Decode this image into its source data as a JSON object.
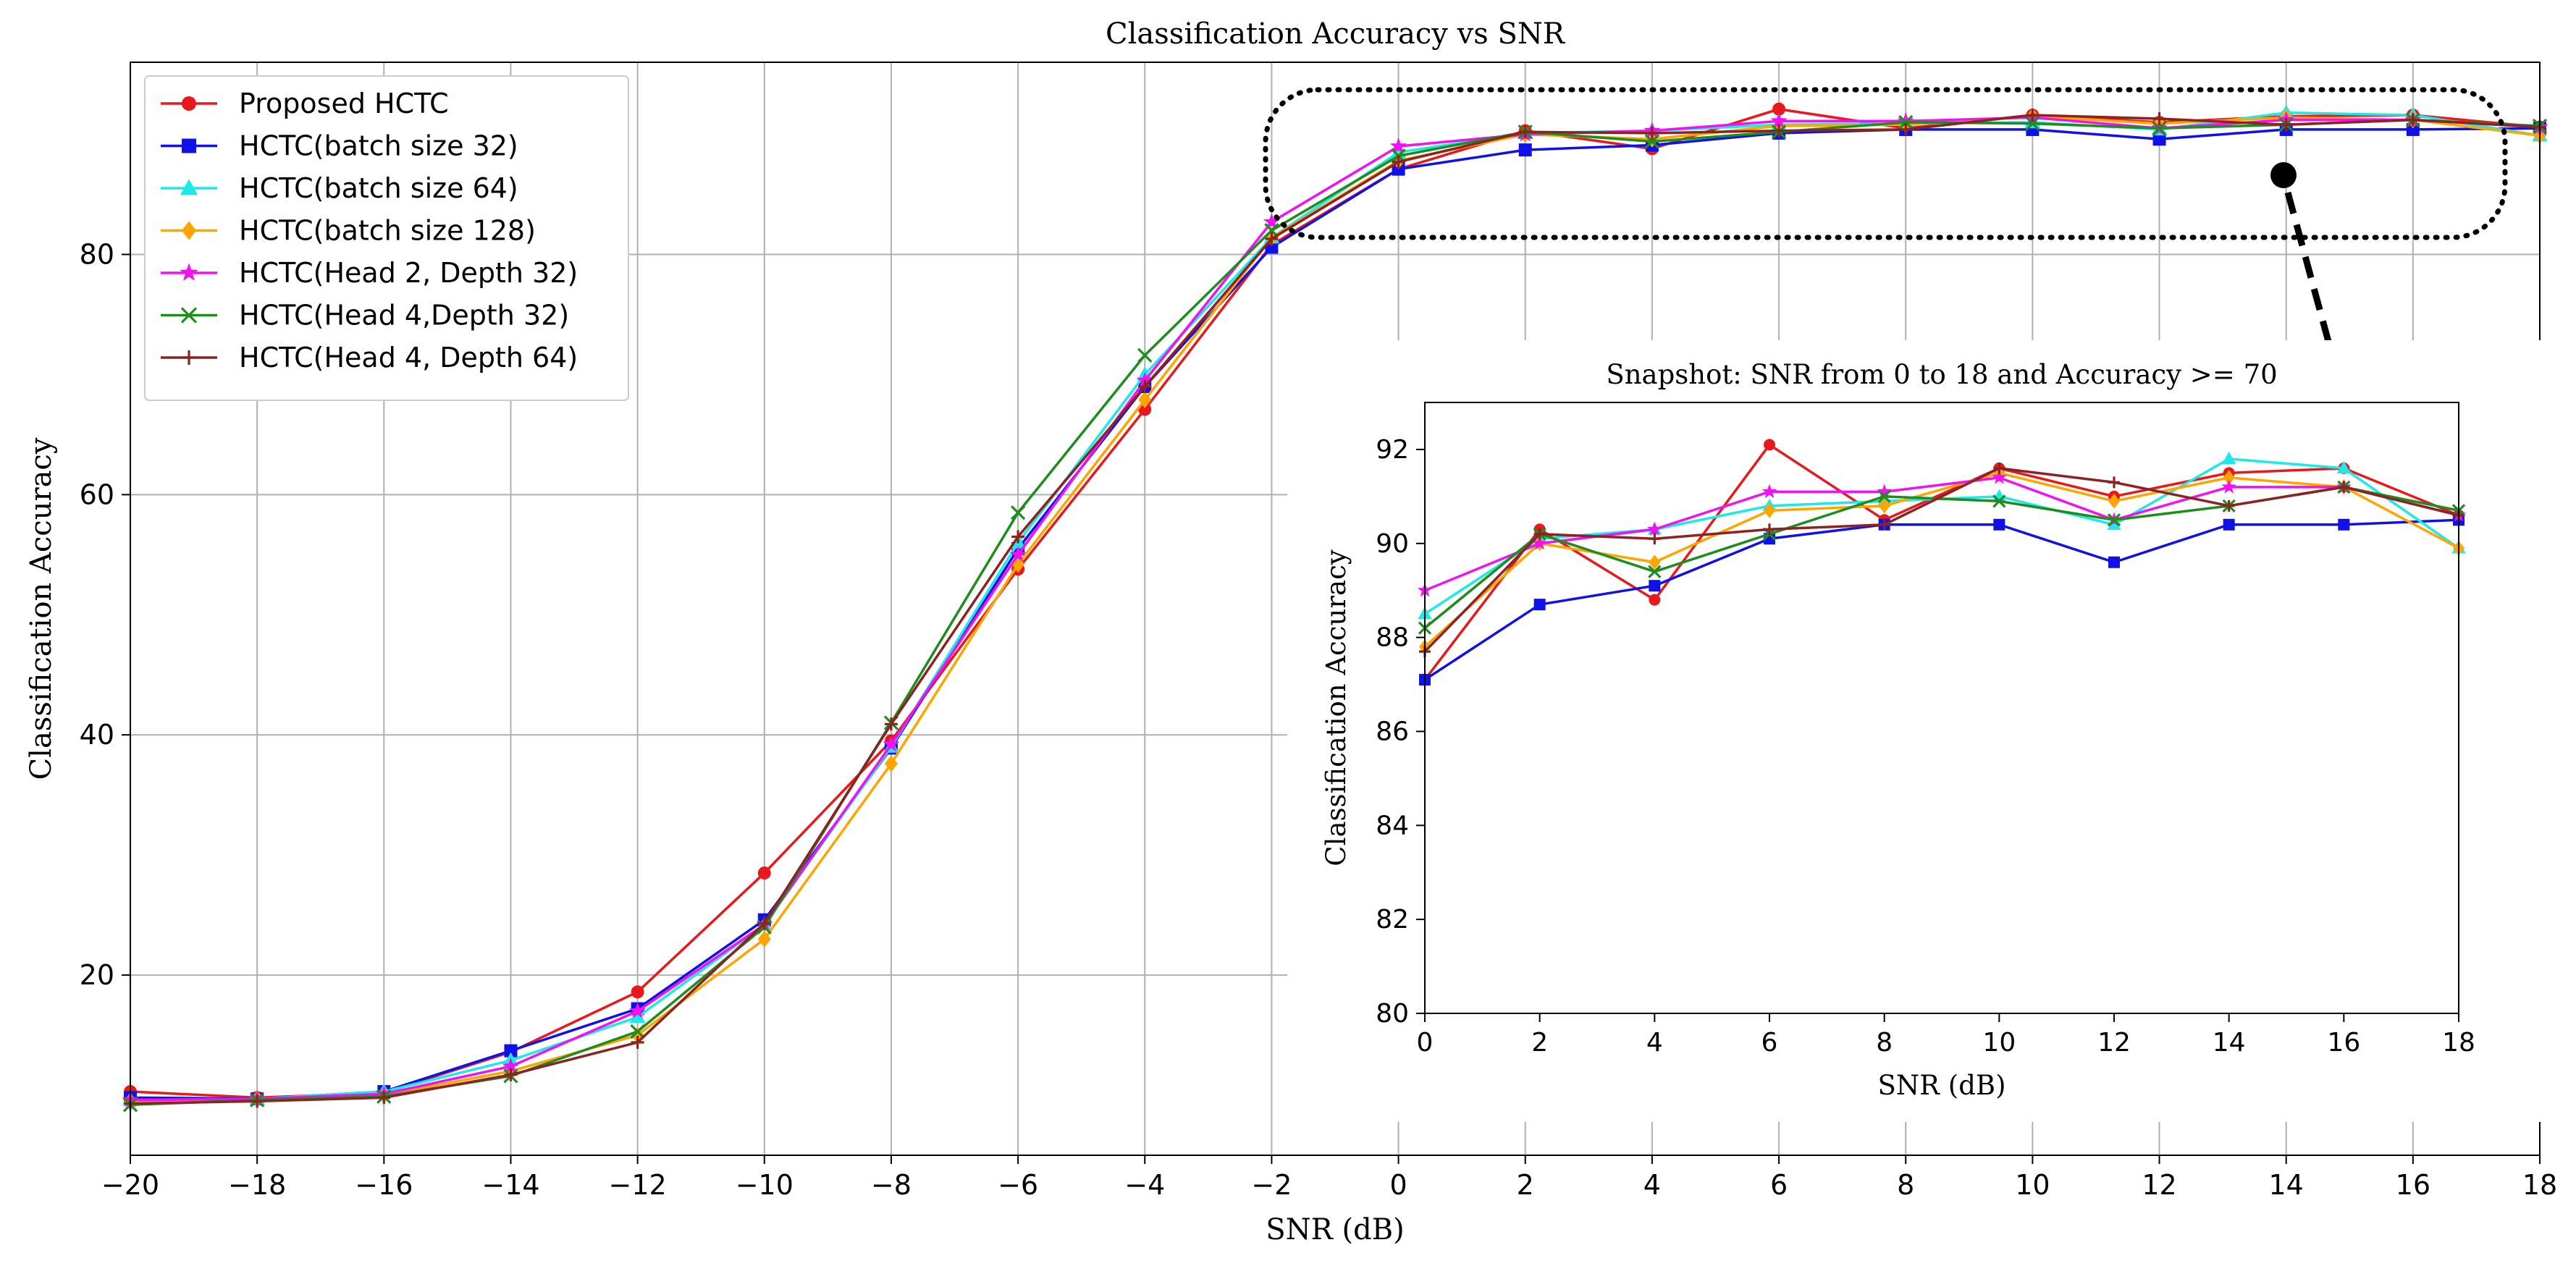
{
  "chart_data": [
    {
      "type": "line",
      "title": "Classification Accuracy vs SNR",
      "xlabel": "SNR (dB)",
      "ylabel": "Classification Accuracy",
      "xlim": [
        -20,
        18
      ],
      "ylim": [
        5,
        96
      ],
      "xticks": [
        -20,
        -18,
        -16,
        -14,
        -12,
        -10,
        -8,
        -6,
        -4,
        -2,
        0,
        2,
        4,
        6,
        8,
        10,
        12,
        14,
        16,
        18
      ],
      "yticks": [
        20,
        40,
        60,
        80
      ],
      "grid": true,
      "legend": "top-left",
      "x": [
        -20,
        -18,
        -16,
        -14,
        -12,
        -10,
        -8,
        -6,
        -4,
        -2,
        0,
        2,
        4,
        6,
        8,
        10,
        12,
        14,
        16,
        18
      ],
      "series": [
        {
          "name": "Proposed HCTC",
          "color": "#e8191c",
          "marker": "circle",
          "values": [
            10.3,
            9.8,
            10.2,
            13.6,
            18.6,
            28.5,
            39.5,
            53.8,
            67.1,
            80.8,
            87.1,
            90.3,
            88.8,
            92.1,
            90.5,
            91.6,
            91.0,
            91.5,
            91.6,
            90.6
          ]
        },
        {
          "name": "HCTC(batch size 32)",
          "color": "#1010e8",
          "marker": "square",
          "values": [
            9.8,
            9.7,
            10.3,
            13.7,
            17.2,
            24.6,
            38.9,
            55.5,
            69.0,
            80.6,
            87.1,
            88.7,
            89.1,
            90.1,
            90.4,
            90.4,
            89.6,
            90.4,
            90.4,
            90.5
          ]
        },
        {
          "name": "HCTC(batch size 64)",
          "color": "#1fe8e8",
          "marker": "triangle",
          "values": [
            9.6,
            9.7,
            10.3,
            12.9,
            16.5,
            24.2,
            39.0,
            56.0,
            70.0,
            81.4,
            88.5,
            90.1,
            90.3,
            90.8,
            90.9,
            91.0,
            90.4,
            91.8,
            91.6,
            89.9
          ]
        },
        {
          "name": "HCTC(batch size 128)",
          "color": "#ffa500",
          "marker": "diamond",
          "values": [
            9.5,
            9.7,
            10.0,
            12.0,
            15.0,
            23.0,
            37.6,
            54.2,
            67.9,
            81.4,
            87.8,
            90.0,
            89.6,
            90.7,
            90.8,
            91.5,
            90.9,
            91.4,
            91.2,
            89.9
          ]
        },
        {
          "name": "HCTC(Head 2, Depth 32)",
          "color": "#f012f0",
          "marker": "star",
          "values": [
            9.6,
            9.7,
            10.1,
            12.4,
            17.0,
            24.2,
            39.2,
            55.0,
            69.5,
            82.7,
            89.0,
            90.0,
            90.3,
            91.1,
            91.1,
            91.4,
            90.5,
            91.2,
            91.2,
            90.6
          ]
        },
        {
          "name": "HCTC(Head 4,Depth 32)",
          "color": "#1e8c1e",
          "marker": "x",
          "values": [
            9.2,
            9.6,
            9.9,
            11.6,
            15.3,
            24.0,
            41.0,
            58.5,
            71.6,
            82.0,
            88.2,
            90.2,
            89.4,
            90.2,
            91.0,
            90.9,
            90.5,
            90.8,
            91.2,
            90.7
          ]
        },
        {
          "name": "HCTC(Head 4, Depth 64)",
          "color": "#8b2323",
          "marker": "plus",
          "values": [
            9.3,
            9.5,
            9.8,
            11.7,
            14.4,
            24.3,
            40.9,
            56.5,
            69.0,
            81.3,
            87.7,
            90.2,
            90.1,
            90.3,
            90.4,
            91.6,
            91.3,
            90.8,
            91.2,
            90.6
          ]
        }
      ]
    },
    {
      "type": "line",
      "title": "Snapshot: SNR from 0 to 18 and Accuracy >= 70",
      "xlabel": "SNR (dB)",
      "ylabel": "Classification Accuracy",
      "xlim": [
        0,
        18
      ],
      "ylim": [
        80,
        93
      ],
      "xticks": [
        0,
        2,
        4,
        6,
        8,
        10,
        12,
        14,
        16,
        18
      ],
      "yticks": [
        80,
        82,
        84,
        86,
        88,
        90,
        92
      ],
      "grid": false,
      "x": [
        0,
        2,
        4,
        6,
        8,
        10,
        12,
        14,
        16,
        18
      ],
      "series_ref": "same seven series as the main chart, SNR 0 to 18"
    }
  ]
}
